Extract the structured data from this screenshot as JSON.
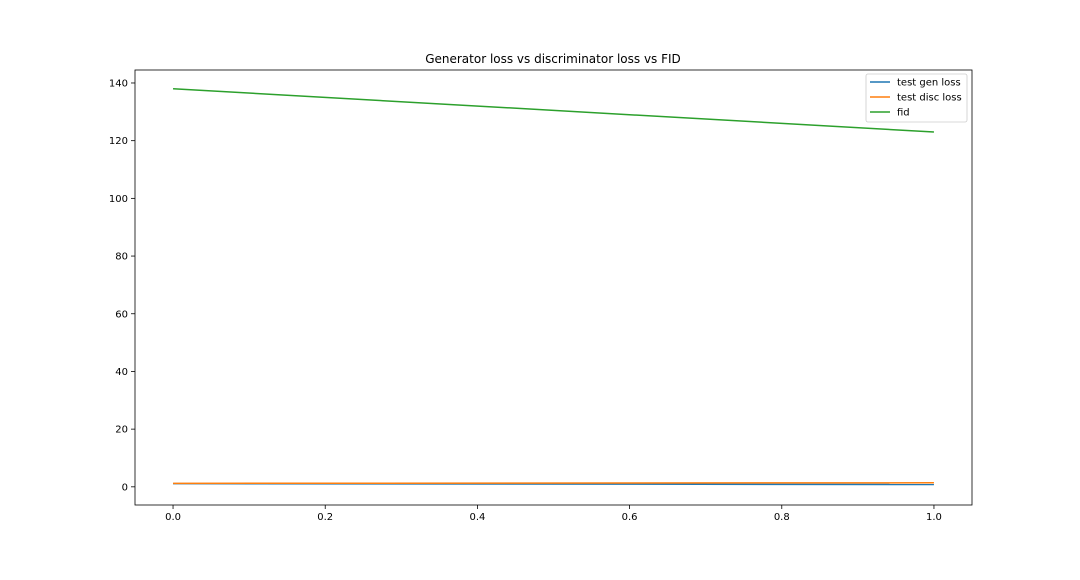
{
  "chart_data": {
    "type": "line",
    "title": "Generator loss vs discriminator loss vs FID",
    "xlabel": "",
    "ylabel": "",
    "x": [
      0.0,
      1.0
    ],
    "xlim": [
      -0.05,
      1.05
    ],
    "ylim": [
      -6.3,
      144.5
    ],
    "xticks": [
      0.0,
      0.2,
      0.4,
      0.6,
      0.8,
      1.0
    ],
    "xtick_labels": [
      "0.0",
      "0.2",
      "0.4",
      "0.6",
      "0.8",
      "1.0"
    ],
    "yticks": [
      0,
      20,
      40,
      60,
      80,
      100,
      120,
      140
    ],
    "ytick_labels": [
      "0",
      "20",
      "40",
      "60",
      "80",
      "100",
      "120",
      "140"
    ],
    "grid": false,
    "legend_position": "top-right",
    "series": [
      {
        "name": "test gen loss",
        "color": "#1f77b4",
        "values": [
          1.1,
          0.8
        ]
      },
      {
        "name": "test disc loss",
        "color": "#ff7f0e",
        "values": [
          1.2,
          1.4
        ]
      },
      {
        "name": "fid",
        "color": "#2ca02c",
        "values": [
          138.0,
          123.0
        ]
      }
    ]
  }
}
